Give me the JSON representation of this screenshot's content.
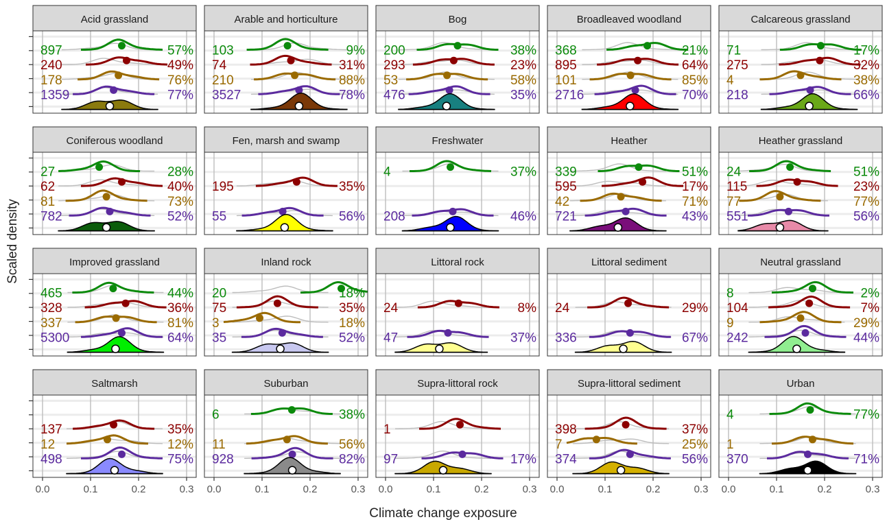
{
  "chart_data": {
    "type": "ridgeline",
    "xlabel": "Climate change exposure",
    "ylabel": "Scaled density",
    "xlim": [
      -0.02,
      0.32
    ],
    "xticks": [
      0.0,
      0.1,
      0.2,
      0.3
    ],
    "xtick_labels": [
      "0.0",
      "0.1",
      "0.2",
      "0.3"
    ],
    "grid": true,
    "colors": {
      "green": "#0b8a0b",
      "red": "#8c0000",
      "brown": "#9a6a00",
      "purple": "#5b2a9e",
      "grey": "#bdbdbd"
    },
    "panels": [
      {
        "name": "Acid grassland",
        "fill": "#8a7a0e",
        "green": {
          "n": "897",
          "pct": "57%",
          "mean": 0.165
        },
        "red": {
          "n": "240",
          "pct": "49%",
          "mean": 0.175
        },
        "brown": {
          "n": "178",
          "pct": "76%",
          "mean": 0.158
        },
        "purple": {
          "n": "1359",
          "pct": "77%",
          "mean": 0.148
        },
        "black": {
          "mean": 0.14
        }
      },
      {
        "name": "Arable and horticulture",
        "fill": "#7a3808",
        "green": {
          "n": "103",
          "pct": "9%",
          "mean": 0.153
        },
        "red": {
          "n": "74",
          "pct": "31%",
          "mean": 0.16
        },
        "brown": {
          "n": "210",
          "pct": "88%",
          "mean": 0.168
        },
        "purple": {
          "n": "3527",
          "pct": "78%",
          "mean": 0.177
        },
        "black": {
          "mean": 0.177
        }
      },
      {
        "name": "Bog",
        "fill": "#188080",
        "green": {
          "n": "200",
          "pct": "38%",
          "mean": 0.15
        },
        "red": {
          "n": "293",
          "pct": "23%",
          "mean": 0.142
        },
        "brown": {
          "n": "53",
          "pct": "58%",
          "mean": 0.128
        },
        "purple": {
          "n": "476",
          "pct": "35%",
          "mean": 0.133
        },
        "black": {
          "mean": 0.127
        }
      },
      {
        "name": "Broadleaved woodland",
        "fill": "#ff0000",
        "green": {
          "n": "368",
          "pct": "21%",
          "mean": 0.188
        },
        "red": {
          "n": "895",
          "pct": "64%",
          "mean": 0.168
        },
        "brown": {
          "n": "101",
          "pct": "85%",
          "mean": 0.153
        },
        "purple": {
          "n": "2716",
          "pct": "70%",
          "mean": 0.163
        },
        "black": {
          "mean": 0.152
        }
      },
      {
        "name": "Calcareous grassland",
        "fill": "#6aa818",
        "green": {
          "n": "71",
          "pct": "17%",
          "mean": 0.192
        },
        "red": {
          "n": "275",
          "pct": "32%",
          "mean": 0.19
        },
        "brown": {
          "n": "4",
          "pct": "38%",
          "mean": 0.15
        },
        "purple": {
          "n": "218",
          "pct": "66%",
          "mean": 0.17
        },
        "black": {
          "mean": 0.168
        }
      },
      {
        "name": "Coniferous woodland",
        "fill": "#0b5c0b",
        "green": {
          "n": "27",
          "pct": "28%",
          "mean": 0.118
        },
        "red": {
          "n": "62",
          "pct": "40%",
          "mean": 0.165
        },
        "brown": {
          "n": "81",
          "pct": "73%",
          "mean": 0.133
        },
        "purple": {
          "n": "782",
          "pct": "52%",
          "mean": 0.14
        },
        "black": {
          "mean": 0.133
        }
      },
      {
        "name": "Fen, marsh and swamp",
        "fill": "#ffff00",
        "green": null,
        "red": {
          "n": "195",
          "pct": "35%",
          "mean": 0.172
        },
        "brown": null,
        "purple": {
          "n": "55",
          "pct": "56%",
          "mean": 0.143
        },
        "black": {
          "mean": 0.147
        }
      },
      {
        "name": "Freshwater",
        "fill": "#0000ff",
        "green": {
          "n": "4",
          "pct": "37%",
          "mean": 0.135
        },
        "red": null,
        "brown": null,
        "purple": {
          "n": "208",
          "pct": "46%",
          "mean": 0.14
        },
        "black": {
          "mean": 0.135
        }
      },
      {
        "name": "Heather",
        "fill": "#7a0e7a",
        "green": {
          "n": "339",
          "pct": "51%",
          "mean": 0.17
        },
        "red": {
          "n": "595",
          "pct": "17%",
          "mean": 0.178
        },
        "brown": {
          "n": "42",
          "pct": "71%",
          "mean": 0.133
        },
        "purple": {
          "n": "721",
          "pct": "43%",
          "mean": 0.143
        },
        "black": {
          "mean": 0.127
        }
      },
      {
        "name": "Heather grassland",
        "fill": "#e88aa8",
        "green": {
          "n": "24",
          "pct": "51%",
          "mean": 0.128
        },
        "red": {
          "n": "115",
          "pct": "23%",
          "mean": 0.143
        },
        "brown": {
          "n": "77",
          "pct": "77%",
          "mean": 0.107
        },
        "purple": {
          "n": "551",
          "pct": "56%",
          "mean": 0.125
        },
        "black": {
          "mean": 0.107
        }
      },
      {
        "name": "Improved grassland",
        "fill": "#00ee00",
        "green": {
          "n": "465",
          "pct": "44%",
          "mean": 0.147
        },
        "red": {
          "n": "328",
          "pct": "36%",
          "mean": 0.173
        },
        "brown": {
          "n": "337",
          "pct": "81%",
          "mean": 0.153
        },
        "purple": {
          "n": "5300",
          "pct": "64%",
          "mean": 0.165
        },
        "black": {
          "mean": 0.152
        }
      },
      {
        "name": "Inland rock",
        "fill": "#c8c8f0",
        "green": {
          "n": "20",
          "pct": "18%",
          "mean": 0.265
        },
        "red": {
          "n": "75",
          "pct": "35%",
          "mean": 0.132
        },
        "brown": {
          "n": "3",
          "pct": "18%",
          "mean": 0.095
        },
        "purple": {
          "n": "35",
          "pct": "52%",
          "mean": 0.142
        },
        "black": {
          "mean": 0.138
        }
      },
      {
        "name": "Littoral rock",
        "fill": "#ffff90",
        "green": null,
        "red": {
          "n": "24",
          "pct": "8%",
          "mean": 0.152
        },
        "brown": null,
        "purple": {
          "n": "47",
          "pct": "37%",
          "mean": 0.13
        },
        "black": {
          "mean": 0.112
        }
      },
      {
        "name": "Littoral sediment",
        "fill": "#ffff90",
        "green": null,
        "red": {
          "n": "24",
          "pct": "29%",
          "mean": 0.148
        },
        "brown": null,
        "purple": {
          "n": "336",
          "pct": "67%",
          "mean": 0.152
        },
        "black": {
          "mean": 0.138
        }
      },
      {
        "name": "Neutral grassland",
        "fill": "#90ee90",
        "green": {
          "n": "8",
          "pct": "2%",
          "mean": 0.175
        },
        "red": {
          "n": "104",
          "pct": "7%",
          "mean": 0.168
        },
        "brown": {
          "n": "9",
          "pct": "29%",
          "mean": 0.15
        },
        "purple": {
          "n": "242",
          "pct": "44%",
          "mean": 0.16
        },
        "black": {
          "mean": 0.142
        }
      },
      {
        "name": "Saltmarsh",
        "fill": "#8a8aff",
        "green": null,
        "red": {
          "n": "137",
          "pct": "35%",
          "mean": 0.148
        },
        "brown": {
          "n": "12",
          "pct": "12%",
          "mean": 0.135
        },
        "purple": {
          "n": "498",
          "pct": "75%",
          "mean": 0.165
        },
        "black": {
          "mean": 0.15
        }
      },
      {
        "name": "Suburban",
        "fill": "#8a8a8a",
        "green": {
          "n": "6",
          "pct": "38%",
          "mean": 0.162
        },
        "red": null,
        "brown": {
          "n": "11",
          "pct": "56%",
          "mean": 0.152
        },
        "purple": {
          "n": "928",
          "pct": "82%",
          "mean": 0.163
        },
        "black": {
          "mean": 0.163
        }
      },
      {
        "name": "Supra-littoral rock",
        "fill": "#c8a800",
        "green": null,
        "red": {
          "n": "1",
          "pct": "",
          "mean": 0.155
        },
        "brown": null,
        "purple": {
          "n": "97",
          "pct": "17%",
          "mean": 0.16
        },
        "black": {
          "mean": 0.12
        }
      },
      {
        "name": "Supra-littoral sediment",
        "fill": "#d4b000",
        "green": null,
        "red": {
          "n": "398",
          "pct": "37%",
          "mean": 0.143
        },
        "brown": {
          "n": "7",
          "pct": "25%",
          "mean": 0.082
        },
        "purple": {
          "n": "374",
          "pct": "56%",
          "mean": 0.152
        },
        "black": {
          "mean": 0.133
        }
      },
      {
        "name": "Urban",
        "fill": "#000000",
        "green": {
          "n": "4",
          "pct": "77%",
          "mean": 0.17
        },
        "red": null,
        "brown": {
          "n": "1",
          "pct": "",
          "mean": 0.175
        },
        "purple": {
          "n": "370",
          "pct": "71%",
          "mean": 0.165
        },
        "black": {
          "mean": 0.165
        }
      }
    ]
  }
}
